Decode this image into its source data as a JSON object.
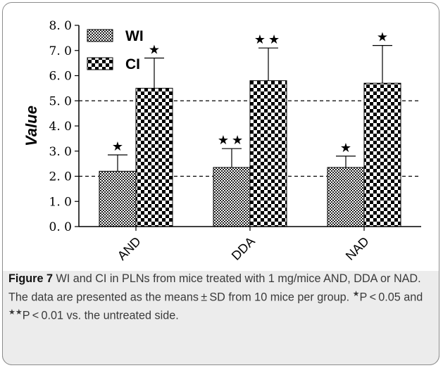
{
  "chart_data": {
    "type": "bar",
    "categories": [
      "AND",
      "DDA",
      "NAD"
    ],
    "series": [
      {
        "name": "WI",
        "values": [
          2.2,
          2.35,
          2.35
        ],
        "errors": [
          0.65,
          0.75,
          0.45
        ],
        "significance": [
          "★",
          "★★",
          "★"
        ],
        "pattern": "fine-checker"
      },
      {
        "name": "CI",
        "values": [
          5.5,
          5.8,
          5.7
        ],
        "errors": [
          1.2,
          1.3,
          1.5
        ],
        "significance": [
          "★",
          "★★",
          "★"
        ],
        "pattern": "coarse-checker"
      }
    ],
    "ylabel": "Value",
    "xlabel": "",
    "ylim": [
      0,
      8
    ],
    "yticks": [
      "0. 0",
      "1. 0",
      "2. 0",
      "3. 0",
      "4. 0",
      "5. 0",
      "6. 0",
      "7. 0",
      "8. 0"
    ],
    "reference_lines": [
      2.0,
      5.0
    ],
    "legend_position": "top-left"
  },
  "caption": {
    "label": "Figure 7",
    "text1": " WI and CI in PLNs from mice treated with 1 mg/mice AND, DDA or NAD. The data are presented as the means ± SD from 10 mice per group. ",
    "star1": "★",
    "text2": "P < 0.05 and ",
    "star2": "★★",
    "text3": "P < 0.01 vs. the untreated side."
  }
}
